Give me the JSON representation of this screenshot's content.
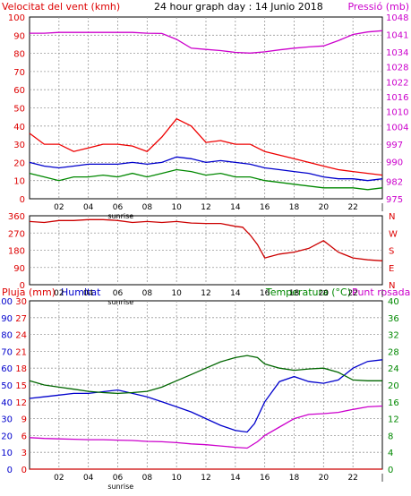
{
  "chart_data": [
    {
      "type": "line",
      "title": "24 hour graph day : 14 Junio 2018",
      "left_label": "Velocitat del vent (kmh)",
      "right_label": "Pressió (mb)",
      "x_ticks": [
        "02",
        "04",
        "06",
        "08",
        "10",
        "12",
        "14",
        "16",
        "18",
        "20",
        "22"
      ],
      "x_range": [
        0,
        24
      ],
      "sunrise_label": "sunrise",
      "sunrise_hour": 6.2,
      "y_left_ticks": [
        0,
        5,
        10,
        15,
        20,
        25,
        30,
        35,
        40,
        45,
        50,
        55,
        60,
        65,
        70,
        75,
        80,
        85,
        90,
        95,
        100
      ],
      "y_left_labels": [
        "100",
        "90",
        "80",
        "70",
        "60",
        "50",
        "40",
        "30",
        "20",
        "10",
        "0"
      ],
      "y_left_range": [
        0,
        100
      ],
      "y_right_ticks": [
        "1048",
        "1041",
        "1034",
        "1028",
        "1022",
        "1016",
        "1010",
        "1004",
        "997",
        "990",
        "982",
        "975"
      ],
      "y_right_range": [
        975,
        1048
      ],
      "grid": true,
      "series": [
        {
          "name": "Pressió",
          "axis": "right",
          "color": "#cc00cc",
          "x": [
            0,
            1,
            2,
            3,
            4,
            5,
            6,
            7,
            8,
            9,
            10,
            11,
            12,
            13,
            14,
            15,
            16,
            17,
            18,
            19,
            20,
            21,
            22,
            23,
            24
          ],
          "values": [
            1041.5,
            1041.5,
            1041.8,
            1041.8,
            1041.8,
            1041.8,
            1041.8,
            1041.8,
            1041.5,
            1041.4,
            1039,
            1035.5,
            1035,
            1034.5,
            1033.8,
            1033.5,
            1034,
            1034.8,
            1035.5,
            1036,
            1036.4,
            1038.5,
            1041,
            1042,
            1042.5
          ]
        },
        {
          "name": "Velocitat vent ratxa",
          "axis": "left",
          "color": "#ee0000",
          "x": [
            0,
            1,
            2,
            3,
            4,
            5,
            6,
            7,
            8,
            9,
            10,
            11,
            12,
            13,
            14,
            15,
            16,
            17,
            18,
            19,
            20,
            21,
            22,
            23,
            24
          ],
          "values": [
            36,
            30,
            30,
            26,
            28,
            30,
            30,
            29,
            26,
            34,
            44,
            40,
            31,
            32,
            30,
            30,
            26,
            24,
            22,
            20,
            18,
            16,
            15,
            14,
            13
          ]
        },
        {
          "name": "Velocitat vent mitjana",
          "axis": "left",
          "color": "#0000cc",
          "x": [
            0,
            1,
            2,
            3,
            4,
            5,
            6,
            7,
            8,
            9,
            10,
            11,
            12,
            13,
            14,
            15,
            16,
            17,
            18,
            19,
            20,
            21,
            22,
            23,
            24
          ],
          "values": [
            20,
            18,
            17,
            18,
            19,
            19,
            19,
            20,
            19,
            20,
            23,
            22,
            20,
            21,
            20,
            19,
            17,
            16,
            15,
            14,
            12,
            11,
            11,
            10,
            11
          ]
        },
        {
          "name": "Velocitat vent mínima",
          "axis": "left",
          "color": "#008800",
          "x": [
            0,
            1,
            2,
            3,
            4,
            5,
            6,
            7,
            8,
            9,
            10,
            11,
            12,
            13,
            14,
            15,
            16,
            17,
            18,
            19,
            20,
            21,
            22,
            23,
            24
          ],
          "values": [
            14,
            12,
            10,
            12,
            12,
            13,
            12,
            14,
            12,
            14,
            16,
            15,
            13,
            14,
            12,
            12,
            10,
            9,
            8,
            7,
            6,
            6,
            6,
            5,
            6
          ]
        }
      ]
    },
    {
      "type": "scatter",
      "title": "",
      "x_ticks": [
        "02",
        "04",
        "06",
        "08",
        "10",
        "12",
        "14",
        "16",
        "18",
        "20",
        "22"
      ],
      "x_range": [
        0,
        24
      ],
      "sunrise_label": "sunrise",
      "y_left_labels": [
        "360",
        "270",
        "180",
        "90",
        "0"
      ],
      "y_right_labels": [
        "N",
        "W",
        "S",
        "E",
        "N"
      ],
      "y_left_range": [
        0,
        360
      ],
      "grid": true,
      "series": [
        {
          "name": "Direcció del vent",
          "color": "#cc0000",
          "x": [
            0,
            1,
            2,
            3,
            4,
            5,
            6,
            7,
            8,
            9,
            10,
            11,
            12,
            13,
            14,
            14.5,
            15,
            15.5,
            16,
            17,
            18,
            19,
            20,
            21,
            22,
            23,
            24
          ],
          "values": [
            330,
            325,
            335,
            335,
            340,
            340,
            335,
            325,
            330,
            325,
            330,
            322,
            320,
            320,
            305,
            300,
            260,
            210,
            140,
            160,
            170,
            190,
            230,
            170,
            140,
            130,
            125
          ]
        }
      ]
    },
    {
      "type": "line",
      "title": "",
      "left_label_1": "Pluja (mm)",
      "left_label_2": "Humitat",
      "right_label_1": "Temperatura (°C)",
      "right_label_2": "Punt rosada",
      "x_ticks": [
        "02",
        "04",
        "06",
        "08",
        "10",
        "12",
        "14",
        "16",
        "18",
        "20",
        "22"
      ],
      "x_range": [
        0,
        24
      ],
      "sunrise_label": "sunrise",
      "y_rain_labels": [
        "30",
        "27",
        "24",
        "21",
        "18",
        "15",
        "12",
        "9",
        "6",
        "3",
        "0"
      ],
      "y_rain_range": [
        0,
        30
      ],
      "y_hum_labels": [
        "100",
        "90",
        "80",
        "70",
        "60",
        "50",
        "40",
        "30",
        "20",
        "10",
        "0"
      ],
      "y_hum_range": [
        0,
        100
      ],
      "y_temp_labels": [
        "40",
        "36",
        "32",
        "28",
        "24",
        "20",
        "16",
        "12",
        "8",
        "4",
        "0"
      ],
      "y_temp_range": [
        0,
        40
      ],
      "grid": true,
      "series": [
        {
          "name": "Humitat",
          "axis": "humidity",
          "color": "#0000cc",
          "x": [
            0,
            1,
            2,
            3,
            4,
            5,
            6,
            7,
            8,
            9,
            10,
            11,
            12,
            13,
            14,
            14.8,
            15.3,
            16,
            17,
            18,
            19,
            20,
            21,
            22,
            23,
            24
          ],
          "values": [
            42,
            43,
            44,
            45,
            45,
            46,
            47,
            45,
            43,
            40,
            37,
            34,
            30,
            26,
            23,
            22,
            27,
            40,
            52,
            55,
            52,
            51,
            53,
            60,
            64,
            65
          ]
        },
        {
          "name": "Temperatura",
          "axis": "temp",
          "color": "#006600",
          "x": [
            0,
            1,
            2,
            3,
            4,
            5,
            6,
            7,
            8,
            9,
            10,
            11,
            12,
            13,
            14,
            14.8,
            15.5,
            16,
            17,
            18,
            19,
            20,
            21,
            22,
            23,
            24
          ],
          "values": [
            21,
            20,
            19.5,
            19,
            18.5,
            18.2,
            18,
            18.2,
            18.5,
            19.5,
            21,
            22.5,
            24,
            25.5,
            26.5,
            27,
            26.5,
            25,
            24,
            23.5,
            23.8,
            24,
            23,
            21.2,
            21,
            21
          ]
        },
        {
          "name": "Punt rosada",
          "axis": "temp",
          "color": "#cc00cc",
          "x": [
            0,
            1,
            2,
            3,
            4,
            5,
            6,
            7,
            8,
            9,
            10,
            11,
            12,
            13,
            14,
            14.8,
            15.5,
            16,
            17,
            18,
            19,
            20,
            21,
            22,
            23,
            24
          ],
          "values": [
            7.5,
            7.3,
            7.2,
            7.1,
            7,
            7,
            6.9,
            6.8,
            6.6,
            6.5,
            6.3,
            6,
            5.8,
            5.5,
            5.2,
            5,
            6.5,
            8,
            10,
            12,
            13,
            13.2,
            13.5,
            14.2,
            14.8,
            15
          ]
        },
        {
          "name": "Pluja",
          "axis": "rain",
          "color": "#cc0000",
          "x": [
            0,
            24
          ],
          "values": [
            0,
            0
          ]
        }
      ]
    }
  ]
}
